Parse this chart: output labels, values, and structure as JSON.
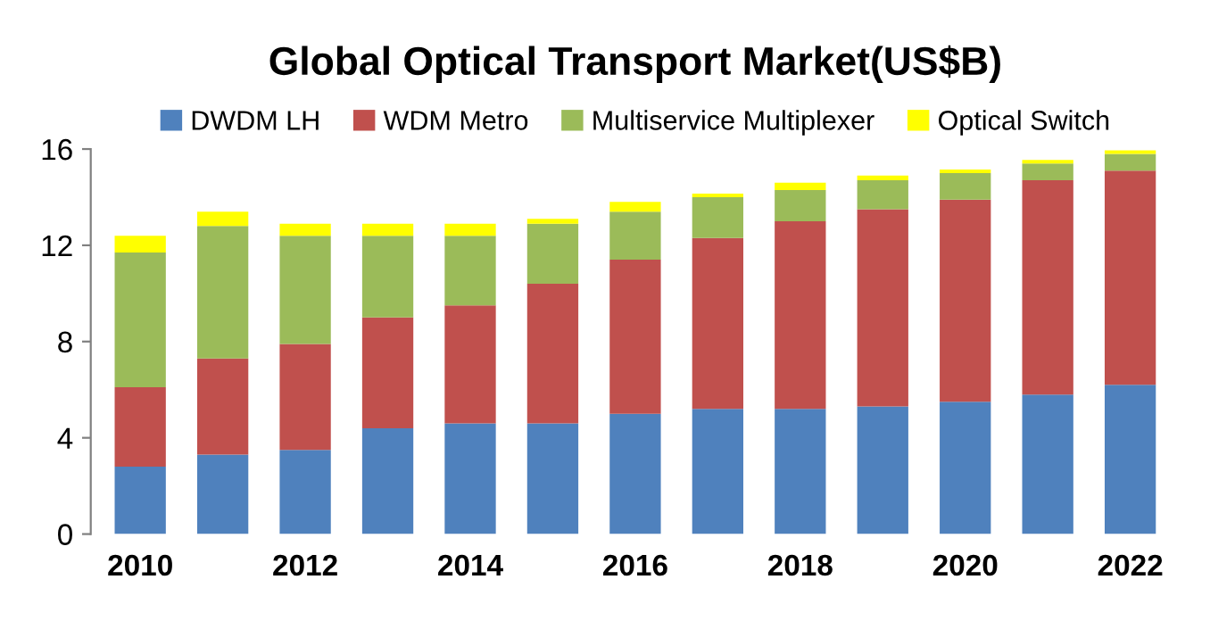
{
  "chart_data": {
    "type": "bar",
    "stacked": true,
    "title": "Global Optical Transport Market(US$B)",
    "categories": [
      "2010",
      null,
      "2012",
      null,
      "2014",
      null,
      "2016",
      null,
      "2018",
      null,
      "2020",
      null,
      "2022"
    ],
    "series": [
      {
        "name": "DWDM LH",
        "color": "#4f81bd",
        "values": [
          2.8,
          3.3,
          3.5,
          4.4,
          4.6,
          4.6,
          5.0,
          5.2,
          5.2,
          5.3,
          5.5,
          5.8,
          6.2
        ]
      },
      {
        "name": "WDM Metro",
        "color": "#c0504d",
        "values": [
          3.3,
          4.0,
          4.4,
          4.6,
          4.9,
          5.8,
          6.4,
          7.1,
          7.8,
          8.2,
          8.4,
          8.9,
          8.9
        ]
      },
      {
        "name": "Multiservice Multiplexer",
        "color": "#9bbb59",
        "values": [
          5.6,
          5.5,
          4.5,
          3.4,
          2.9,
          2.5,
          2.0,
          1.7,
          1.3,
          1.2,
          1.1,
          0.7,
          0.7
        ]
      },
      {
        "name": "Optical Switch",
        "color": "#ffff00",
        "values": [
          0.7,
          0.6,
          0.5,
          0.5,
          0.5,
          0.2,
          0.4,
          0.15,
          0.3,
          0.2,
          0.15,
          0.15,
          0.15
        ]
      }
    ],
    "ylim": [
      0,
      16
    ],
    "yticks": [
      0,
      4,
      8,
      12,
      16
    ],
    "grid": false,
    "legend": "top"
  }
}
